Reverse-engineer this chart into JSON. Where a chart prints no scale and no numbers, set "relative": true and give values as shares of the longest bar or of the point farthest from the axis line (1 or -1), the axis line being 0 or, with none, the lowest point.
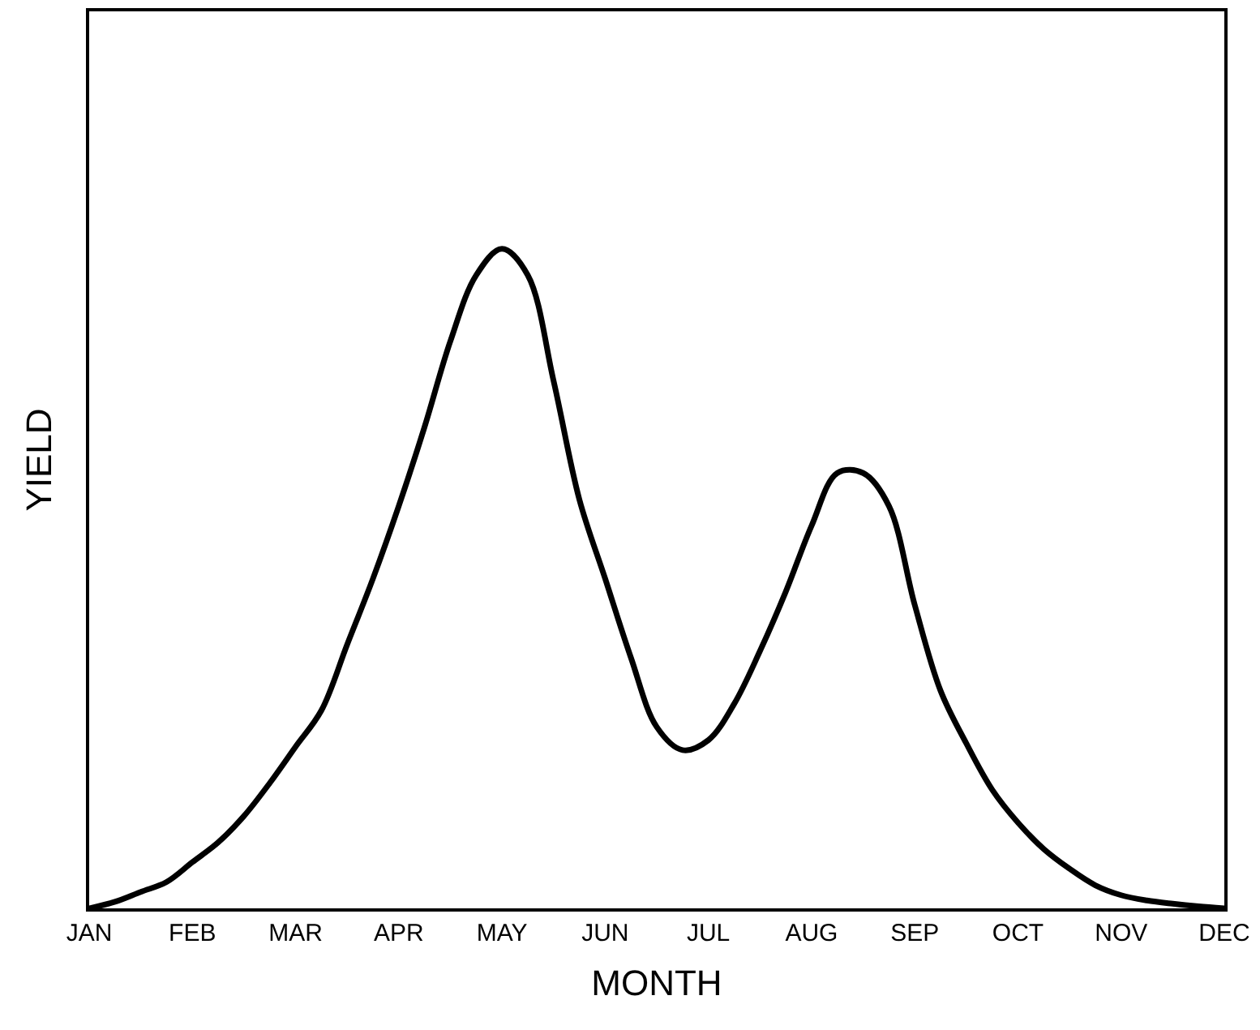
{
  "chart_data": {
    "type": "line",
    "relative": true,
    "xlabel": "MONTH",
    "ylabel": "YIELD",
    "marker": "none",
    "line_style": "solid",
    "categories": [
      "JAN",
      null,
      null,
      null,
      "FEB",
      null,
      null,
      null,
      "MAR",
      null,
      null,
      null,
      "APR",
      null,
      null,
      null,
      "MAY",
      null,
      null,
      null,
      "JUN",
      null,
      null,
      null,
      "JUL",
      null,
      null,
      null,
      "AUG",
      null,
      null,
      null,
      "SEP",
      null,
      null,
      null,
      "OCT",
      null,
      null,
      null,
      "NOV",
      null,
      null,
      null,
      "DEC"
    ],
    "series": [
      {
        "color": "#000000",
        "values": [
          0,
          0.01,
          0.025,
          0.04,
          0.07,
          0.1,
          0.14,
          0.19,
          0.245,
          0.3,
          0.4,
          0.5,
          0.61,
          0.73,
          0.86,
          0.96,
          1.0,
          0.96,
          0.8,
          0.62,
          0.5,
          0.38,
          0.275,
          0.24,
          0.255,
          0.31,
          0.39,
          0.48,
          0.58,
          0.66,
          0.66,
          0.61,
          0.46,
          0.33,
          0.25,
          0.18,
          0.13,
          0.09,
          0.06,
          0.035,
          0.02,
          0.012,
          0.007,
          0.003,
          0
        ]
      }
    ]
  }
}
